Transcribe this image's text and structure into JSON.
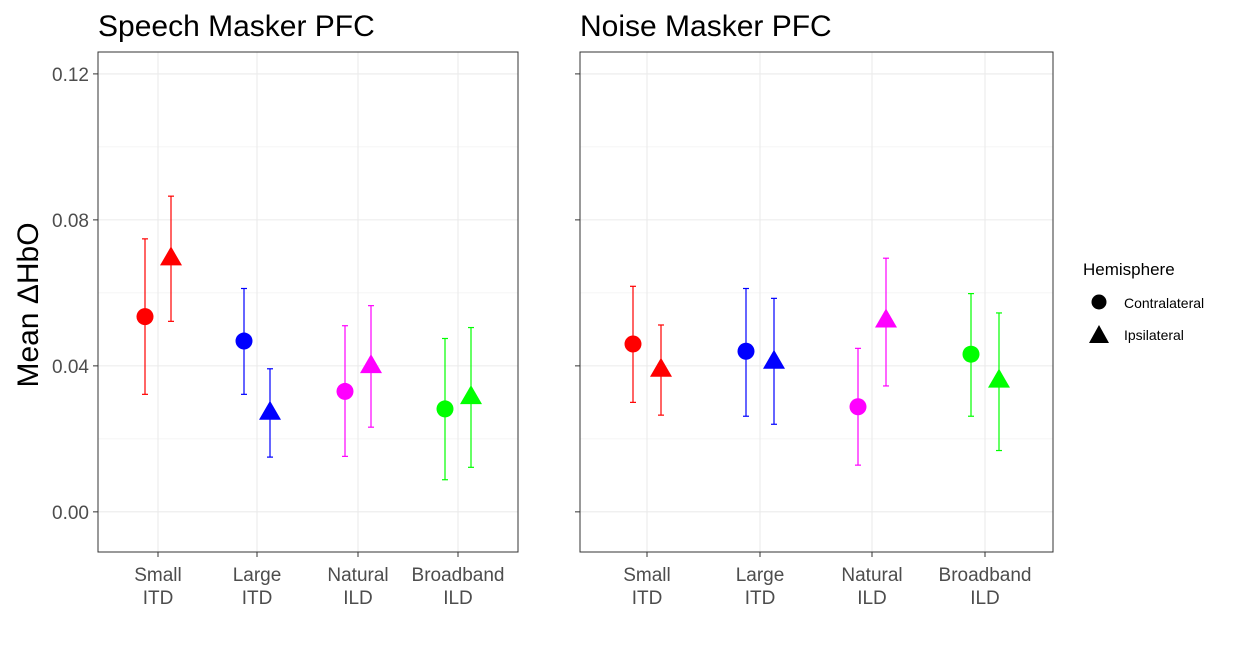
{
  "chart_data": {
    "type": "scatter",
    "ylabel": "Mean ΔHbO",
    "ylim": [
      -0.011,
      0.126
    ],
    "yticks": [
      0.0,
      0.04,
      0.08,
      0.12
    ],
    "ytick_labels": [
      "0.00",
      "0.04",
      "0.08",
      "0.12"
    ],
    "grid": true,
    "legend": {
      "title": "Hemisphere",
      "position": "right",
      "entries": [
        {
          "label": "Contralateral",
          "shape": "circle"
        },
        {
          "label": "Ipsilateral",
          "shape": "triangle"
        }
      ]
    },
    "categories": [
      {
        "line1": "Small",
        "line2": "ITD",
        "color": "#ff0000"
      },
      {
        "line1": "Large",
        "line2": "ITD",
        "color": "#0000ff"
      },
      {
        "line1": "Natural",
        "line2": "ILD",
        "color": "#ff00ff"
      },
      {
        "line1": "Broadband",
        "line2": "ILD",
        "color": "#00ff00"
      }
    ],
    "panels": [
      {
        "title": "Speech Masker PFC",
        "series": [
          {
            "hemisphere": "Contralateral",
            "mean": [
              0.0535,
              0.0468,
              0.033,
              0.0282
            ],
            "lower": [
              0.0322,
              0.0322,
              0.0152,
              0.0088
            ],
            "upper": [
              0.0748,
              0.0612,
              0.051,
              0.0475
            ]
          },
          {
            "hemisphere": "Ipsilateral",
            "mean": [
              0.0695,
              0.0272,
              0.04,
              0.0315
            ],
            "lower": [
              0.0522,
              0.015,
              0.0232,
              0.0122
            ],
            "upper": [
              0.0865,
              0.0392,
              0.0565,
              0.0505
            ]
          }
        ]
      },
      {
        "title": "Noise Masker PFC",
        "series": [
          {
            "hemisphere": "Contralateral",
            "mean": [
              0.046,
              0.044,
              0.0288,
              0.0432
            ],
            "lower": [
              0.03,
              0.0262,
              0.0128,
              0.0262
            ],
            "upper": [
              0.0618,
              0.0612,
              0.0448,
              0.0598
            ]
          },
          {
            "hemisphere": "Ipsilateral",
            "mean": [
              0.039,
              0.0412,
              0.0525,
              0.036
            ],
            "lower": [
              0.0265,
              0.024,
              0.0345,
              0.0168
            ],
            "upper": [
              0.0512,
              0.0585,
              0.0695,
              0.0545
            ]
          }
        ]
      }
    ]
  }
}
